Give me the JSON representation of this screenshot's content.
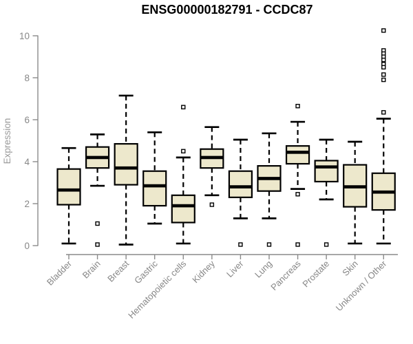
{
  "chart_data": {
    "type": "box",
    "title": "ENSG00000182791 - CCDC87",
    "xlabel": "",
    "ylabel": "Expression",
    "ylim": [
      0,
      10.3
    ],
    "yticks": [
      0,
      2,
      4,
      6,
      8,
      10
    ],
    "grid": false,
    "legend": false,
    "categories": [
      "Bladder",
      "Brain",
      "Breast",
      "Gastric",
      "Hematopoietic cells",
      "Kidney",
      "Liver",
      "Lung",
      "Pancreas",
      "Prostate",
      "Skin",
      "Unknown / Other"
    ],
    "series": [
      {
        "category": "Bladder",
        "whisker_low": 0.1,
        "q1": 1.95,
        "median": 2.65,
        "q3": 3.65,
        "whisker_high": 4.65,
        "outliers": []
      },
      {
        "category": "Brain",
        "whisker_low": 2.85,
        "q1": 3.7,
        "median": 4.2,
        "q3": 4.7,
        "whisker_high": 5.3,
        "outliers": [
          1.05,
          0.05
        ]
      },
      {
        "category": "Breast",
        "whisker_low": 0.05,
        "q1": 2.9,
        "median": 3.7,
        "q3": 4.85,
        "whisker_high": 7.15,
        "outliers": []
      },
      {
        "category": "Gastric",
        "whisker_low": 1.05,
        "q1": 1.9,
        "median": 2.85,
        "q3": 3.55,
        "whisker_high": 5.4,
        "outliers": []
      },
      {
        "category": "Hematopoietic cells",
        "whisker_low": 0.1,
        "q1": 1.1,
        "median": 1.9,
        "q3": 2.4,
        "whisker_high": 4.2,
        "outliers": [
          6.6,
          4.5
        ]
      },
      {
        "category": "Kidney",
        "whisker_low": 2.4,
        "q1": 3.7,
        "median": 4.2,
        "q3": 4.6,
        "whisker_high": 5.65,
        "outliers": [
          1.95
        ]
      },
      {
        "category": "Liver",
        "whisker_low": 1.3,
        "q1": 2.3,
        "median": 2.8,
        "q3": 3.55,
        "whisker_high": 5.05,
        "outliers": [
          0.05
        ]
      },
      {
        "category": "Lung",
        "whisker_low": 1.3,
        "q1": 2.6,
        "median": 3.2,
        "q3": 3.8,
        "whisker_high": 5.35,
        "outliers": [
          0.05
        ]
      },
      {
        "category": "Pancreas",
        "whisker_low": 2.7,
        "q1": 3.9,
        "median": 4.45,
        "q3": 4.75,
        "whisker_high": 5.9,
        "outliers": [
          6.65,
          2.45,
          0.05
        ]
      },
      {
        "category": "Prostate",
        "whisker_low": 2.2,
        "q1": 3.05,
        "median": 3.75,
        "q3": 4.05,
        "whisker_high": 5.05,
        "outliers": [
          0.05
        ]
      },
      {
        "category": "Skin",
        "whisker_low": 0.1,
        "q1": 1.85,
        "median": 2.8,
        "q3": 3.85,
        "whisker_high": 4.95,
        "outliers": []
      },
      {
        "category": "Unknown / Other",
        "whisker_low": 0.1,
        "q1": 1.7,
        "median": 2.55,
        "q3": 3.45,
        "whisker_high": 6.05,
        "outliers": [
          10.25,
          9.3,
          9.15,
          9.0,
          8.85,
          8.65,
          8.5,
          8.15,
          7.9,
          6.35
        ]
      }
    ],
    "colors": {
      "box_fill": "#EDE8CC",
      "box_stroke": "#000000",
      "median": "#000000",
      "whisker": "#000000",
      "axis": "#8A8A8A",
      "tick_label": "#878787",
      "title": "#000000",
      "background": "#FFFFFF"
    }
  }
}
